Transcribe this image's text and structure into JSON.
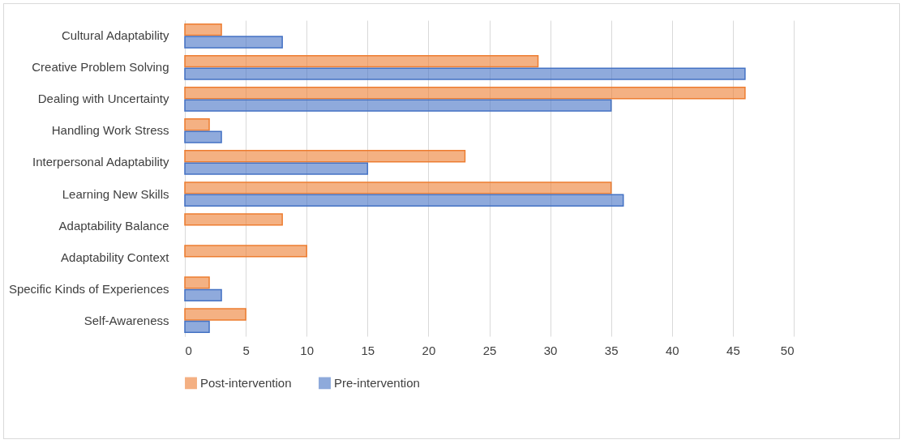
{
  "chart_data": {
    "type": "bar",
    "orientation": "horizontal",
    "categories": [
      "Cultural Adaptability",
      "Creative Problem Solving",
      "Dealing with Uncertainty",
      "Handling Work Stress",
      "Interpersonal Adaptability",
      "Learning New Skills",
      "Adaptability Balance",
      "Adaptability Context",
      "Specific Kinds of Experiences",
      "Self-Awareness"
    ],
    "series": [
      {
        "name": "Post-intervention",
        "color": "#ed7d31",
        "values": [
          3,
          29,
          46,
          2,
          23,
          35,
          8,
          10,
          2,
          5
        ]
      },
      {
        "name": "Pre-intervention",
        "color": "#4472c4",
        "values": [
          8,
          46,
          35,
          3,
          15,
          36,
          null,
          null,
          3,
          2
        ]
      }
    ],
    "xlim": [
      0,
      50
    ],
    "xticks": [
      0,
      5,
      10,
      15,
      20,
      25,
      30,
      35,
      40,
      45,
      50
    ],
    "grid": "x",
    "legend": "bottom"
  }
}
